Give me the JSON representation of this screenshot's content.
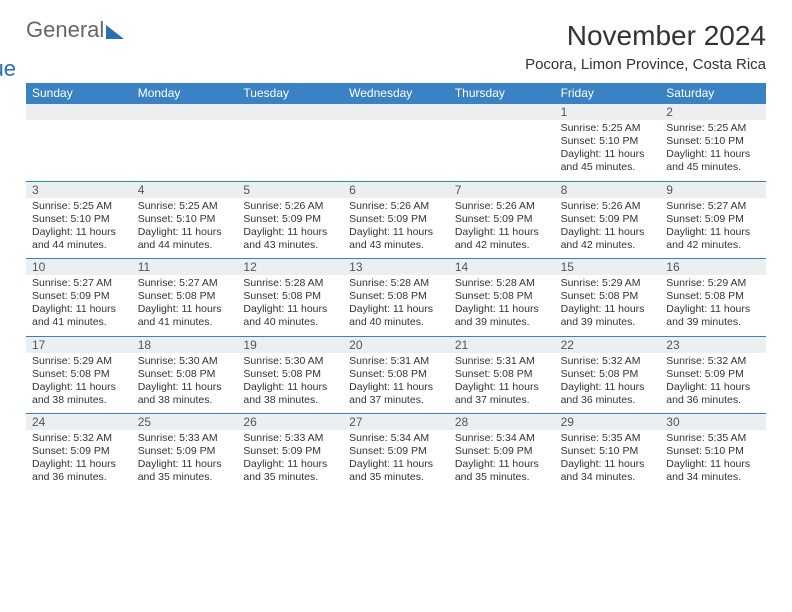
{
  "brand": {
    "general": "General",
    "blue": "Blue"
  },
  "title": "November 2024",
  "location": "Pocora, Limon Province, Costa Rica",
  "colors": {
    "header_bg": "#3b82c4",
    "header_text": "#ffffff",
    "daynum_bg": "#eceff1",
    "divider": "#3b82c4",
    "body_text": "#333333",
    "brand_gray": "#666666",
    "brand_blue": "#2c6fb0",
    "page_bg": "#ffffff"
  },
  "fonts": {
    "title_size_pt": 21,
    "location_size_pt": 11,
    "dow_size_pt": 9,
    "cell_size_pt": 8
  },
  "dow": [
    "Sunday",
    "Monday",
    "Tuesday",
    "Wednesday",
    "Thursday",
    "Friday",
    "Saturday"
  ],
  "weeks": [
    [
      {
        "n": "",
        "sr": "",
        "ss": "",
        "dl": ""
      },
      {
        "n": "",
        "sr": "",
        "ss": "",
        "dl": ""
      },
      {
        "n": "",
        "sr": "",
        "ss": "",
        "dl": ""
      },
      {
        "n": "",
        "sr": "",
        "ss": "",
        "dl": ""
      },
      {
        "n": "",
        "sr": "",
        "ss": "",
        "dl": ""
      },
      {
        "n": "1",
        "sr": "Sunrise: 5:25 AM",
        "ss": "Sunset: 5:10 PM",
        "dl": "Daylight: 11 hours and 45 minutes."
      },
      {
        "n": "2",
        "sr": "Sunrise: 5:25 AM",
        "ss": "Sunset: 5:10 PM",
        "dl": "Daylight: 11 hours and 45 minutes."
      }
    ],
    [
      {
        "n": "3",
        "sr": "Sunrise: 5:25 AM",
        "ss": "Sunset: 5:10 PM",
        "dl": "Daylight: 11 hours and 44 minutes."
      },
      {
        "n": "4",
        "sr": "Sunrise: 5:25 AM",
        "ss": "Sunset: 5:10 PM",
        "dl": "Daylight: 11 hours and 44 minutes."
      },
      {
        "n": "5",
        "sr": "Sunrise: 5:26 AM",
        "ss": "Sunset: 5:09 PM",
        "dl": "Daylight: 11 hours and 43 minutes."
      },
      {
        "n": "6",
        "sr": "Sunrise: 5:26 AM",
        "ss": "Sunset: 5:09 PM",
        "dl": "Daylight: 11 hours and 43 minutes."
      },
      {
        "n": "7",
        "sr": "Sunrise: 5:26 AM",
        "ss": "Sunset: 5:09 PM",
        "dl": "Daylight: 11 hours and 42 minutes."
      },
      {
        "n": "8",
        "sr": "Sunrise: 5:26 AM",
        "ss": "Sunset: 5:09 PM",
        "dl": "Daylight: 11 hours and 42 minutes."
      },
      {
        "n": "9",
        "sr": "Sunrise: 5:27 AM",
        "ss": "Sunset: 5:09 PM",
        "dl": "Daylight: 11 hours and 42 minutes."
      }
    ],
    [
      {
        "n": "10",
        "sr": "Sunrise: 5:27 AM",
        "ss": "Sunset: 5:09 PM",
        "dl": "Daylight: 11 hours and 41 minutes."
      },
      {
        "n": "11",
        "sr": "Sunrise: 5:27 AM",
        "ss": "Sunset: 5:08 PM",
        "dl": "Daylight: 11 hours and 41 minutes."
      },
      {
        "n": "12",
        "sr": "Sunrise: 5:28 AM",
        "ss": "Sunset: 5:08 PM",
        "dl": "Daylight: 11 hours and 40 minutes."
      },
      {
        "n": "13",
        "sr": "Sunrise: 5:28 AM",
        "ss": "Sunset: 5:08 PM",
        "dl": "Daylight: 11 hours and 40 minutes."
      },
      {
        "n": "14",
        "sr": "Sunrise: 5:28 AM",
        "ss": "Sunset: 5:08 PM",
        "dl": "Daylight: 11 hours and 39 minutes."
      },
      {
        "n": "15",
        "sr": "Sunrise: 5:29 AM",
        "ss": "Sunset: 5:08 PM",
        "dl": "Daylight: 11 hours and 39 minutes."
      },
      {
        "n": "16",
        "sr": "Sunrise: 5:29 AM",
        "ss": "Sunset: 5:08 PM",
        "dl": "Daylight: 11 hours and 39 minutes."
      }
    ],
    [
      {
        "n": "17",
        "sr": "Sunrise: 5:29 AM",
        "ss": "Sunset: 5:08 PM",
        "dl": "Daylight: 11 hours and 38 minutes."
      },
      {
        "n": "18",
        "sr": "Sunrise: 5:30 AM",
        "ss": "Sunset: 5:08 PM",
        "dl": "Daylight: 11 hours and 38 minutes."
      },
      {
        "n": "19",
        "sr": "Sunrise: 5:30 AM",
        "ss": "Sunset: 5:08 PM",
        "dl": "Daylight: 11 hours and 38 minutes."
      },
      {
        "n": "20",
        "sr": "Sunrise: 5:31 AM",
        "ss": "Sunset: 5:08 PM",
        "dl": "Daylight: 11 hours and 37 minutes."
      },
      {
        "n": "21",
        "sr": "Sunrise: 5:31 AM",
        "ss": "Sunset: 5:08 PM",
        "dl": "Daylight: 11 hours and 37 minutes."
      },
      {
        "n": "22",
        "sr": "Sunrise: 5:32 AM",
        "ss": "Sunset: 5:08 PM",
        "dl": "Daylight: 11 hours and 36 minutes."
      },
      {
        "n": "23",
        "sr": "Sunrise: 5:32 AM",
        "ss": "Sunset: 5:09 PM",
        "dl": "Daylight: 11 hours and 36 minutes."
      }
    ],
    [
      {
        "n": "24",
        "sr": "Sunrise: 5:32 AM",
        "ss": "Sunset: 5:09 PM",
        "dl": "Daylight: 11 hours and 36 minutes."
      },
      {
        "n": "25",
        "sr": "Sunrise: 5:33 AM",
        "ss": "Sunset: 5:09 PM",
        "dl": "Daylight: 11 hours and 35 minutes."
      },
      {
        "n": "26",
        "sr": "Sunrise: 5:33 AM",
        "ss": "Sunset: 5:09 PM",
        "dl": "Daylight: 11 hours and 35 minutes."
      },
      {
        "n": "27",
        "sr": "Sunrise: 5:34 AM",
        "ss": "Sunset: 5:09 PM",
        "dl": "Daylight: 11 hours and 35 minutes."
      },
      {
        "n": "28",
        "sr": "Sunrise: 5:34 AM",
        "ss": "Sunset: 5:09 PM",
        "dl": "Daylight: 11 hours and 35 minutes."
      },
      {
        "n": "29",
        "sr": "Sunrise: 5:35 AM",
        "ss": "Sunset: 5:10 PM",
        "dl": "Daylight: 11 hours and 34 minutes."
      },
      {
        "n": "30",
        "sr": "Sunrise: 5:35 AM",
        "ss": "Sunset: 5:10 PM",
        "dl": "Daylight: 11 hours and 34 minutes."
      }
    ]
  ]
}
